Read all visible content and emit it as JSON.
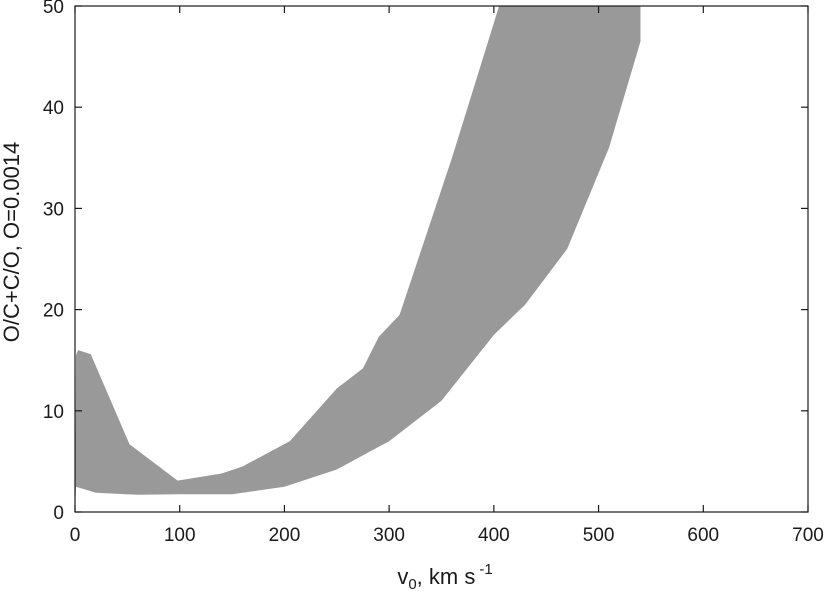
{
  "chart_data": {
    "type": "area",
    "title": "",
    "xlabel": {
      "base": "v",
      "sub": "0",
      "rest": ", km s",
      "sup": "-1"
    },
    "ylabel": "O/C+C/O, O=0.0014",
    "xlim": [
      0,
      700
    ],
    "ylim": [
      0,
      50
    ],
    "x_ticks": [
      0,
      100,
      200,
      300,
      400,
      500,
      600,
      700
    ],
    "y_ticks": [
      0,
      10,
      20,
      30,
      40,
      50
    ],
    "grid": false,
    "fill_color": "#999999",
    "series": [
      {
        "upper": [
          [
            0,
            0
          ],
          [
            1,
            15.5
          ],
          [
            3,
            16.0
          ],
          [
            15,
            15.6
          ],
          [
            52,
            6.7
          ],
          [
            98,
            3.1
          ],
          [
            140,
            3.8
          ],
          [
            160,
            4.5
          ],
          [
            205,
            7.0
          ],
          [
            250,
            12.2
          ],
          [
            275,
            14.2
          ],
          [
            290,
            17.3
          ],
          [
            310,
            19.5
          ],
          [
            360,
            35.0
          ],
          [
            405,
            50.0
          ]
        ],
        "lower": [
          [
            0,
            0
          ],
          [
            1,
            2.5
          ],
          [
            20,
            1.9
          ],
          [
            60,
            1.7
          ],
          [
            100,
            1.75
          ],
          [
            150,
            1.75
          ],
          [
            200,
            2.5
          ],
          [
            250,
            4.2
          ],
          [
            300,
            7.0
          ],
          [
            350,
            11.0
          ],
          [
            400,
            17.5
          ],
          [
            430,
            20.5
          ],
          [
            470,
            26.0
          ],
          [
            510,
            36.0
          ],
          [
            540,
            46.5
          ],
          [
            540,
            50.0
          ]
        ]
      }
    ]
  }
}
